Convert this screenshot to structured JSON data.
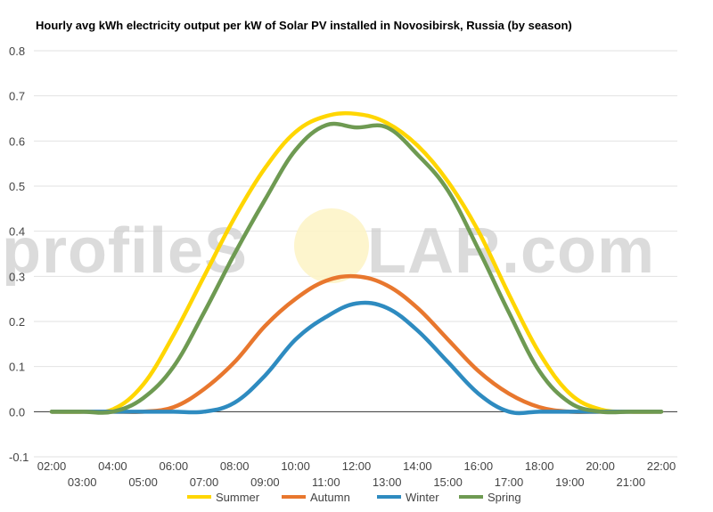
{
  "chart_data": {
    "type": "line",
    "title": "Hourly avg kWh electricity output per kW of Solar PV installed in Novosibirsk, Russia (by season)",
    "xlabel": "",
    "ylabel": "",
    "ylim": [
      -0.1,
      0.8
    ],
    "yticks": [
      "0.8",
      "0.7",
      "0.6",
      "0.5",
      "0.4",
      "0.3",
      "0.2",
      "0.1",
      "0.0",
      "-0.1"
    ],
    "x": [
      "02:00",
      "03:00",
      "04:00",
      "05:00",
      "06:00",
      "07:00",
      "08:00",
      "09:00",
      "10:00",
      "11:00",
      "12:00",
      "13:00",
      "14:00",
      "15:00",
      "16:00",
      "17:00",
      "18:00",
      "19:00",
      "20:00",
      "21:00",
      "22:00"
    ],
    "grid": true,
    "legend_position": "bottom",
    "series": [
      {
        "name": "Summer",
        "color": "#ffd600",
        "values": [
          0.0,
          0.0,
          0.005,
          0.06,
          0.17,
          0.3,
          0.43,
          0.54,
          0.62,
          0.655,
          0.66,
          0.64,
          0.59,
          0.51,
          0.4,
          0.26,
          0.13,
          0.04,
          0.005,
          0.0,
          0.0
        ]
      },
      {
        "name": "Autumn",
        "color": "#e8772e",
        "values": [
          0.0,
          0.0,
          0.0,
          0.0,
          0.01,
          0.05,
          0.11,
          0.19,
          0.25,
          0.29,
          0.3,
          0.28,
          0.23,
          0.16,
          0.09,
          0.04,
          0.01,
          0.0,
          0.0,
          0.0,
          0.0
        ]
      },
      {
        "name": "Winter",
        "color": "#2e8bc0",
        "values": [
          0.0,
          0.0,
          0.0,
          0.0,
          0.0,
          0.0,
          0.02,
          0.08,
          0.16,
          0.21,
          0.24,
          0.23,
          0.18,
          0.11,
          0.04,
          0.0,
          0.0,
          0.0,
          0.0,
          0.0,
          0.0
        ]
      },
      {
        "name": "Spring",
        "color": "#6e9a52",
        "values": [
          0.0,
          0.0,
          0.0,
          0.03,
          0.1,
          0.22,
          0.35,
          0.47,
          0.58,
          0.635,
          0.63,
          0.63,
          0.57,
          0.49,
          0.36,
          0.22,
          0.09,
          0.02,
          0.0,
          0.0,
          0.0
        ]
      }
    ],
    "watermark": {
      "text_left": "profileS",
      "text_right": "LAR.com",
      "sun_color": "#fdf3c4",
      "text_color": "#cfcfcf"
    }
  }
}
